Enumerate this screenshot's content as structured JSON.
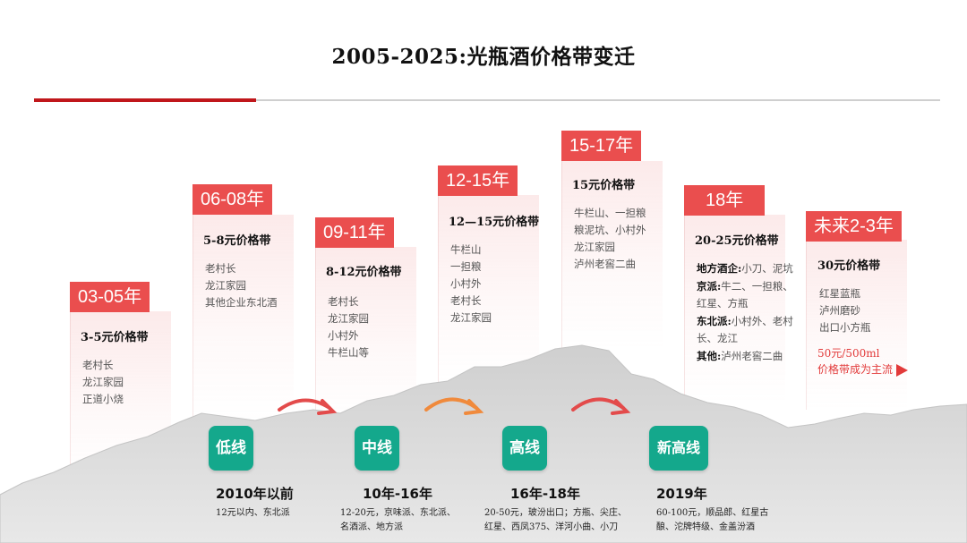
{
  "title": "2005-2025:光瓶酒价格带变迁",
  "columns": [
    {
      "period": "03-05年",
      "band": "3-5元价格带",
      "items": [
        "老村长",
        "龙江家园",
        "正道小烧"
      ]
    },
    {
      "period": "06-08年",
      "band": "5-8元价格带",
      "items": [
        "老村长",
        "龙江家园",
        "其他企业东北酒"
      ]
    },
    {
      "period": "09-11年",
      "band": "8-12元价格带",
      "items": [
        "老村长",
        "龙江家园",
        "小村外",
        "牛栏山等"
      ]
    },
    {
      "period": "12-15年",
      "band": "12—15元价格带",
      "items": [
        "牛栏山",
        "一担粮",
        "小村外",
        "老村长",
        "龙江家园"
      ]
    },
    {
      "period": "15-17年",
      "band": "15元价格带",
      "items": [
        "牛栏山、一担粮",
        "粮泥坑、小村外",
        "龙江家园",
        "泸州老窖二曲"
      ]
    },
    {
      "period": "18年",
      "band": "20-25元价格带",
      "groups": [
        {
          "label": "地方酒企:",
          "text": "小刀、泥坑"
        },
        {
          "label": "京派:",
          "text": "牛二、一担粮、红星、方瓶"
        },
        {
          "label": "东北派:",
          "text": "小村外、老村长、龙江"
        },
        {
          "label": "其他:",
          "text": "泸州老窖二曲"
        }
      ]
    },
    {
      "period": "未来2-3年",
      "band": "30元价格带",
      "items": [
        "红星蓝瓶",
        "泸州磨砂",
        "出口小方瓶"
      ],
      "highlight": [
        "50元/500ml",
        "价格带成为主流"
      ]
    }
  ],
  "tiers": [
    {
      "label": "低线",
      "period": "2010年以前",
      "desc": [
        "12元以内、东北派"
      ]
    },
    {
      "label": "中线",
      "period": "10年-16年",
      "desc": [
        "12-20元，京味派、东北派、",
        "名酒派、地方派"
      ]
    },
    {
      "label": "高线",
      "period": "16年-18年",
      "desc": [
        "20-50元，玻汾出口；方瓶、尖庄、",
        "红星、西凤375、洋河小曲、小刀"
      ]
    },
    {
      "label": "新高线",
      "period": "2019年",
      "desc": [
        "60-100元，顺品郎、红星古",
        "酿、沱牌特级、金盖汾酒"
      ]
    }
  ],
  "colors": {
    "accent": "#ea4e4e",
    "tier": "#14a88c",
    "rule": "#c0171b",
    "mountain": "#d9d9d9"
  }
}
